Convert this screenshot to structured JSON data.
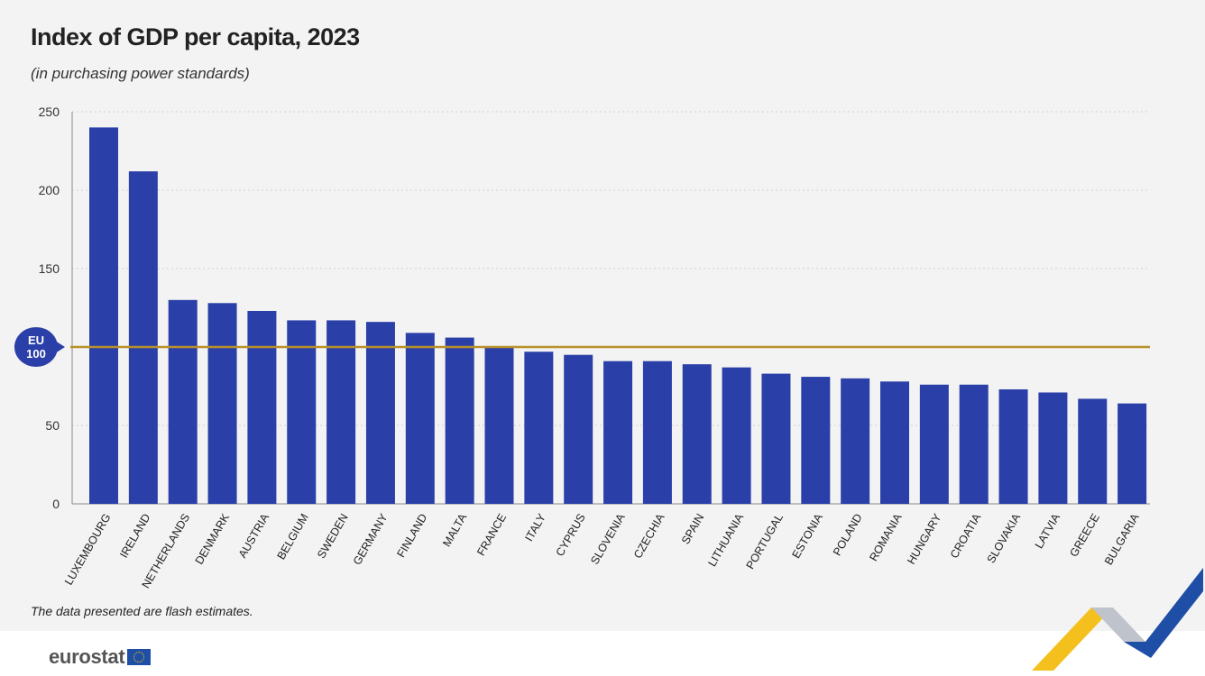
{
  "title": "Index of GDP per capita, 2023",
  "subtitle": "(in purchasing power standards)",
  "footnote": "The data presented are flash estimates.",
  "logo_text": "eurostat",
  "colors": {
    "bar": "#2b3fa8",
    "reference_line": "#b8912a",
    "badge": "#2b3fa8",
    "grid": "#d0d0d0",
    "deco_yellow": "#f4c01e",
    "deco_blue": "#1f4ea6",
    "deco_grey": "#bfc3cc"
  },
  "chart_data": {
    "type": "bar",
    "title": "Index of GDP per capita, 2023",
    "subtitle": "(in purchasing power standards)",
    "categories": [
      "LUXEMBOURG",
      "IRELAND",
      "NETHERLANDS",
      "DENMARK",
      "AUSTRIA",
      "BELGIUM",
      "SWEDEN",
      "GERMANY",
      "FINLAND",
      "MALTA",
      "FRANCE",
      "ITALY",
      "CYPRUS",
      "SLOVENIA",
      "CZECHIA",
      "SPAIN",
      "LITHUANIA",
      "PORTUGAL",
      "ESTONIA",
      "POLAND",
      "ROMANIA",
      "HUNGARY",
      "CROATIA",
      "SLOVAKIA",
      "LATVIA",
      "GREECE",
      "BULGARIA"
    ],
    "values": [
      240,
      212,
      130,
      128,
      123,
      117,
      117,
      116,
      109,
      106,
      100,
      97,
      95,
      91,
      91,
      89,
      87,
      83,
      81,
      80,
      78,
      76,
      76,
      73,
      71,
      67,
      64
    ],
    "ylim": [
      0,
      250
    ],
    "yticks": [
      0,
      50,
      100,
      150,
      200,
      250
    ],
    "ytick_labels": [
      "0",
      "50",
      "",
      "150",
      "200",
      "250"
    ],
    "grid": true,
    "reference_line": {
      "value": 100,
      "label_top": "EU",
      "label_bottom": "100"
    }
  }
}
